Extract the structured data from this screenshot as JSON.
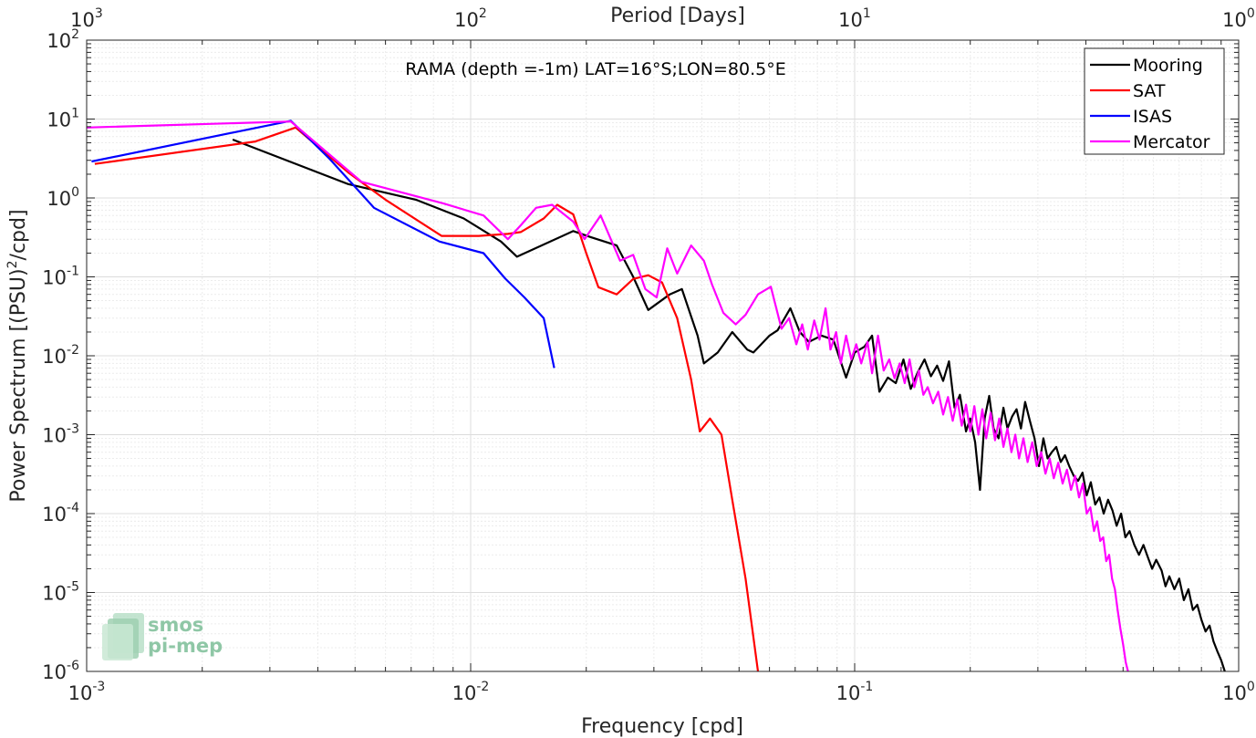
{
  "chart_data": {
    "type": "line",
    "title": "RAMA (depth =-1m) LAT=16°S;LON=80.5°E",
    "xlabel": "Frequency [cpd]",
    "ylabel_parts": [
      "Power Spectrum [(PSU)",
      "2",
      "/cpd]"
    ],
    "top_xlabel": "Period [Days]",
    "xscale": "log",
    "yscale": "log",
    "xlim": [
      0.001,
      1
    ],
    "ylim": [
      1e-06,
      100
    ],
    "grid": true,
    "minor_grid": true,
    "legend_position": "top-right",
    "x_ticks": [
      {
        "v": 0.001,
        "base": "10",
        "exp": "-3"
      },
      {
        "v": 0.01,
        "base": "10",
        "exp": "-2"
      },
      {
        "v": 0.1,
        "base": "10",
        "exp": "-1"
      },
      {
        "v": 1,
        "base": "10",
        "exp": "0"
      }
    ],
    "top_ticks": [
      {
        "v": 0.001,
        "base": "10",
        "exp": "3"
      },
      {
        "v": 0.01,
        "base": "10",
        "exp": "2"
      },
      {
        "v": 0.1,
        "base": "10",
        "exp": "1"
      },
      {
        "v": 1,
        "base": "10",
        "exp": "0"
      }
    ],
    "y_ticks": [
      {
        "v": 100,
        "base": "10",
        "exp": "2"
      },
      {
        "v": 10,
        "base": "10",
        "exp": "1"
      },
      {
        "v": 1,
        "base": "10",
        "exp": "0"
      },
      {
        "v": 0.1,
        "base": "10",
        "exp": "-1"
      },
      {
        "v": 0.01,
        "base": "10",
        "exp": "-2"
      },
      {
        "v": 0.001,
        "base": "10",
        "exp": "-3"
      },
      {
        "v": 0.0001,
        "base": "10",
        "exp": "-4"
      },
      {
        "v": 1e-05,
        "base": "10",
        "exp": "-5"
      },
      {
        "v": 1e-06,
        "base": "10",
        "exp": "-6"
      }
    ],
    "series": [
      {
        "name": "Mooring",
        "color": "#000000",
        "points": [
          [
            0.0024,
            5.5
          ],
          [
            0.0048,
            1.5
          ],
          [
            0.0072,
            0.95
          ],
          [
            0.0096,
            0.55
          ],
          [
            0.012,
            0.28
          ],
          [
            0.0132,
            0.18
          ],
          [
            0.0185,
            0.38
          ],
          [
            0.0205,
            0.32
          ],
          [
            0.024,
            0.25
          ],
          [
            0.0265,
            0.1
          ],
          [
            0.029,
            0.038
          ],
          [
            0.033,
            0.06
          ],
          [
            0.0355,
            0.07
          ],
          [
            0.039,
            0.018
          ],
          [
            0.0405,
            0.008
          ],
          [
            0.044,
            0.011
          ],
          [
            0.048,
            0.02
          ],
          [
            0.0525,
            0.012
          ],
          [
            0.0545,
            0.011
          ],
          [
            0.06,
            0.018
          ],
          [
            0.063,
            0.021
          ],
          [
            0.068,
            0.04
          ],
          [
            0.072,
            0.02
          ],
          [
            0.076,
            0.015
          ],
          [
            0.082,
            0.018
          ],
          [
            0.088,
            0.016
          ],
          [
            0.095,
            0.0053
          ],
          [
            0.1,
            0.011
          ],
          [
            0.106,
            0.013
          ],
          [
            0.111,
            0.018
          ],
          [
            0.116,
            0.0035
          ],
          [
            0.122,
            0.0053
          ],
          [
            0.128,
            0.0045
          ],
          [
            0.134,
            0.009
          ],
          [
            0.14,
            0.0038
          ],
          [
            0.146,
            0.0062
          ],
          [
            0.152,
            0.009
          ],
          [
            0.158,
            0.0055
          ],
          [
            0.164,
            0.0075
          ],
          [
            0.17,
            0.0048
          ],
          [
            0.176,
            0.0085
          ],
          [
            0.182,
            0.0022
          ],
          [
            0.188,
            0.0032
          ],
          [
            0.195,
            0.0011
          ],
          [
            0.2,
            0.0016
          ],
          [
            0.206,
            0.0008
          ],
          [
            0.212,
            0.0002
          ],
          [
            0.218,
            0.0016
          ],
          [
            0.224,
            0.0031
          ],
          [
            0.23,
            0.0012
          ],
          [
            0.237,
            0.0009
          ],
          [
            0.244,
            0.0022
          ],
          [
            0.25,
            0.0012
          ],
          [
            0.257,
            0.0017
          ],
          [
            0.264,
            0.0021
          ],
          [
            0.271,
            0.0012
          ],
          [
            0.278,
            0.0026
          ],
          [
            0.286,
            0.0015
          ],
          [
            0.294,
            0.0009
          ],
          [
            0.302,
            0.0004
          ],
          [
            0.31,
            0.0009
          ],
          [
            0.318,
            0.0005
          ],
          [
            0.326,
            0.0006
          ],
          [
            0.335,
            0.0007
          ],
          [
            0.344,
            0.00045
          ],
          [
            0.353,
            0.00055
          ],
          [
            0.362,
            0.0004
          ],
          [
            0.372,
            0.0003
          ],
          [
            0.382,
            0.00026
          ],
          [
            0.392,
            0.00033
          ],
          [
            0.402,
            0.00017
          ],
          [
            0.412,
            0.00025
          ],
          [
            0.423,
            0.00013
          ],
          [
            0.434,
            0.00016
          ],
          [
            0.445,
            0.0001
          ],
          [
            0.457,
            0.00015
          ],
          [
            0.469,
            0.00011
          ],
          [
            0.481,
            7e-05
          ],
          [
            0.494,
            0.0001
          ],
          [
            0.507,
            5e-05
          ],
          [
            0.52,
            6e-05
          ],
          [
            0.535,
            4e-05
          ],
          [
            0.55,
            3e-05
          ],
          [
            0.565,
            4e-05
          ],
          [
            0.58,
            2.8e-05
          ],
          [
            0.595,
            2e-05
          ],
          [
            0.61,
            2.6e-05
          ],
          [
            0.63,
            1.9e-05
          ],
          [
            0.645,
            1.2e-05
          ],
          [
            0.66,
            1.6e-05
          ],
          [
            0.68,
            1.1e-05
          ],
          [
            0.7,
            1.5e-05
          ],
          [
            0.72,
            8e-06
          ],
          [
            0.74,
            1.1e-05
          ],
          [
            0.76,
            6e-06
          ],
          [
            0.78,
            7e-06
          ],
          [
            0.8,
            4.5e-06
          ],
          [
            0.82,
            3.2e-06
          ],
          [
            0.84,
            3.8e-06
          ],
          [
            0.86,
            2.4e-06
          ],
          [
            0.88,
            1.8e-06
          ],
          [
            0.9,
            1.4e-06
          ],
          [
            0.92,
            1e-06
          ]
        ]
      },
      {
        "name": "SAT",
        "color": "#ff0000",
        "points": [
          [
            0.00105,
            2.7
          ],
          [
            0.00275,
            5.2
          ],
          [
            0.0035,
            7.8
          ],
          [
            0.0048,
            2.1
          ],
          [
            0.006,
            0.95
          ],
          [
            0.0084,
            0.33
          ],
          [
            0.0105,
            0.33
          ],
          [
            0.0125,
            0.35
          ],
          [
            0.0135,
            0.37
          ],
          [
            0.0155,
            0.55
          ],
          [
            0.0168,
            0.82
          ],
          [
            0.0185,
            0.62
          ],
          [
            0.02,
            0.2
          ],
          [
            0.0215,
            0.074
          ],
          [
            0.024,
            0.06
          ],
          [
            0.0265,
            0.094
          ],
          [
            0.029,
            0.105
          ],
          [
            0.0315,
            0.085
          ],
          [
            0.0345,
            0.03
          ],
          [
            0.0375,
            0.005
          ],
          [
            0.0395,
            0.0011
          ],
          [
            0.042,
            0.0016
          ],
          [
            0.045,
            0.001
          ],
          [
            0.048,
            0.00015
          ],
          [
            0.052,
            1.5e-05
          ],
          [
            0.056,
            1e-06
          ]
        ]
      },
      {
        "name": "ISAS",
        "color": "#0000ff",
        "points": [
          [
            0.00103,
            2.9
          ],
          [
            0.0034,
            9.5
          ],
          [
            0.0043,
            3.1
          ],
          [
            0.0056,
            0.75
          ],
          [
            0.0083,
            0.28
          ],
          [
            0.0108,
            0.2
          ],
          [
            0.0123,
            0.095
          ],
          [
            0.0138,
            0.055
          ],
          [
            0.0155,
            0.03
          ],
          [
            0.0165,
            0.007
          ]
        ]
      },
      {
        "name": "Mercator",
        "color": "#ff00ff",
        "points": [
          [
            0.001,
            7.8
          ],
          [
            0.0034,
            9.3
          ],
          [
            0.0052,
            1.6
          ],
          [
            0.0085,
            0.85
          ],
          [
            0.0108,
            0.6
          ],
          [
            0.0125,
            0.3
          ],
          [
            0.0135,
            0.45
          ],
          [
            0.0148,
            0.75
          ],
          [
            0.0163,
            0.82
          ],
          [
            0.0185,
            0.5
          ],
          [
            0.0198,
            0.3
          ],
          [
            0.0218,
            0.6
          ],
          [
            0.0245,
            0.16
          ],
          [
            0.0265,
            0.19
          ],
          [
            0.0285,
            0.07
          ],
          [
            0.0305,
            0.055
          ],
          [
            0.0325,
            0.23
          ],
          [
            0.0345,
            0.11
          ],
          [
            0.0375,
            0.25
          ],
          [
            0.0405,
            0.16
          ],
          [
            0.0425,
            0.08
          ],
          [
            0.0455,
            0.035
          ],
          [
            0.049,
            0.025
          ],
          [
            0.052,
            0.033
          ],
          [
            0.056,
            0.06
          ],
          [
            0.0605,
            0.075
          ],
          [
            0.0645,
            0.022
          ],
          [
            0.0675,
            0.03
          ],
          [
            0.0705,
            0.014
          ],
          [
            0.073,
            0.025
          ],
          [
            0.0755,
            0.012
          ],
          [
            0.0785,
            0.028
          ],
          [
            0.081,
            0.016
          ],
          [
            0.084,
            0.04
          ],
          [
            0.0865,
            0.012
          ],
          [
            0.0895,
            0.02
          ],
          [
            0.092,
            0.008
          ],
          [
            0.095,
            0.018
          ],
          [
            0.098,
            0.009
          ],
          [
            0.101,
            0.014
          ],
          [
            0.104,
            0.008
          ],
          [
            0.108,
            0.015
          ],
          [
            0.111,
            0.006
          ],
          [
            0.115,
            0.018
          ],
          [
            0.119,
            0.0065
          ],
          [
            0.123,
            0.009
          ],
          [
            0.127,
            0.0052
          ],
          [
            0.131,
            0.008
          ],
          [
            0.135,
            0.0045
          ],
          [
            0.139,
            0.009
          ],
          [
            0.143,
            0.004
          ],
          [
            0.147,
            0.0065
          ],
          [
            0.151,
            0.0032
          ],
          [
            0.155,
            0.004
          ],
          [
            0.16,
            0.0025
          ],
          [
            0.165,
            0.0035
          ],
          [
            0.17,
            0.0018
          ],
          [
            0.175,
            0.003
          ],
          [
            0.18,
            0.0015
          ],
          [
            0.185,
            0.0028
          ],
          [
            0.19,
            0.0013
          ],
          [
            0.195,
            0.0024
          ],
          [
            0.2,
            0.0011
          ],
          [
            0.205,
            0.0023
          ],
          [
            0.21,
            0.001
          ],
          [
            0.215,
            0.0021
          ],
          [
            0.22,
            0.0009
          ],
          [
            0.226,
            0.0019
          ],
          [
            0.232,
            0.00085
          ],
          [
            0.238,
            0.0016
          ],
          [
            0.244,
            0.0007
          ],
          [
            0.25,
            0.0012
          ],
          [
            0.256,
            0.0006
          ],
          [
            0.262,
            0.001
          ],
          [
            0.268,
            0.0005
          ],
          [
            0.275,
            0.0009
          ],
          [
            0.282,
            0.00045
          ],
          [
            0.29,
            0.0008
          ],
          [
            0.298,
            0.0004
          ],
          [
            0.306,
            0.0006
          ],
          [
            0.314,
            0.00032
          ],
          [
            0.322,
            0.0005
          ],
          [
            0.33,
            0.00028
          ],
          [
            0.339,
            0.00044
          ],
          [
            0.348,
            0.00024
          ],
          [
            0.357,
            0.00036
          ],
          [
            0.366,
            0.0002
          ],
          [
            0.375,
            0.0003
          ],
          [
            0.384,
            0.00016
          ],
          [
            0.393,
            0.00024
          ],
          [
            0.402,
            0.0001
          ],
          [
            0.411,
            0.00012
          ],
          [
            0.42,
            6e-05
          ],
          [
            0.428,
            8e-05
          ],
          [
            0.436,
            4.5e-05
          ],
          [
            0.444,
            5e-05
          ],
          [
            0.452,
            2.5e-05
          ],
          [
            0.46,
            3e-05
          ],
          [
            0.468,
            1.5e-05
          ],
          [
            0.476,
            1.1e-05
          ],
          [
            0.484,
            6e-06
          ],
          [
            0.492,
            3.5e-06
          ],
          [
            0.5,
            2.2e-06
          ],
          [
            0.508,
            1.3e-06
          ],
          [
            0.515,
            1e-06
          ]
        ]
      }
    ]
  },
  "watermark": {
    "line1": "smos",
    "line2": "pi-mep",
    "color": "#8fc7a6"
  }
}
